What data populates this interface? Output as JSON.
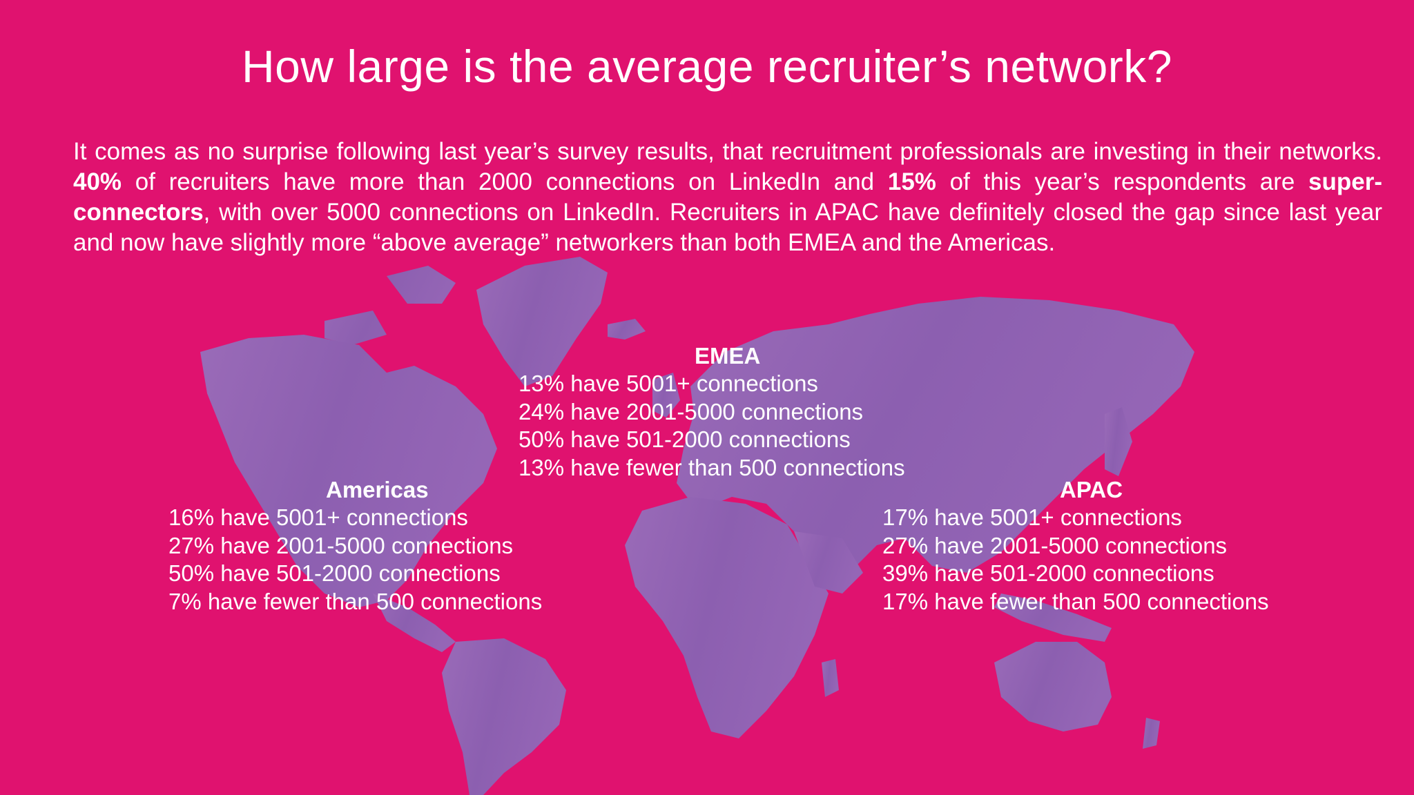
{
  "colors": {
    "background": "#e0126f",
    "map": "#8f63b2",
    "text": "#ffffff"
  },
  "title": "How large is the average recruiter’s network?",
  "intro": {
    "p1": "It comes as no surprise following last year’s survey results, that recruitment professionals are investing in their networks.  ",
    "b1": "40%",
    "p2": " of recruiters have more than 2000 connections on LinkedIn and ",
    "b2": "15%",
    "p3": " of this year’s respondents are ",
    "b3": "super-connectors",
    "p4": ", with over 5000 connections on LinkedIn.  Recruiters in APAC have definitely closed the gap since last year and now have slightly more “above average” networkers than both EMEA and the Americas."
  },
  "regions": {
    "emea": {
      "name": "EMEA",
      "rows": [
        {
          "pct": "13%",
          "text": "have 5001+ connections"
        },
        {
          "pct": "24%",
          "text": "have 2001-5000 connections"
        },
        {
          "pct": "50%",
          "text": "have 501-2000 connections"
        },
        {
          "pct": "13%",
          "text": "have fewer than 500 connections"
        }
      ]
    },
    "americas": {
      "name": "Americas",
      "rows": [
        {
          "pct": "16%",
          "text": "have 5001+ connections"
        },
        {
          "pct": "27%",
          "text": "have 2001-5000 connections"
        },
        {
          "pct": "50%",
          "text": "have 501-2000 connections"
        },
        {
          "pct": "7%",
          "text": "have fewer than 500 connections"
        }
      ]
    },
    "apac": {
      "name": "APAC",
      "rows": [
        {
          "pct": "17%",
          "text": "have 5001+ connections"
        },
        {
          "pct": "27%",
          "text": "have 2001-5000 connections"
        },
        {
          "pct": "39%",
          "text": "have 501-2000 connections"
        },
        {
          "pct": "17%",
          "text": "have fewer than 500 connections"
        }
      ]
    }
  }
}
